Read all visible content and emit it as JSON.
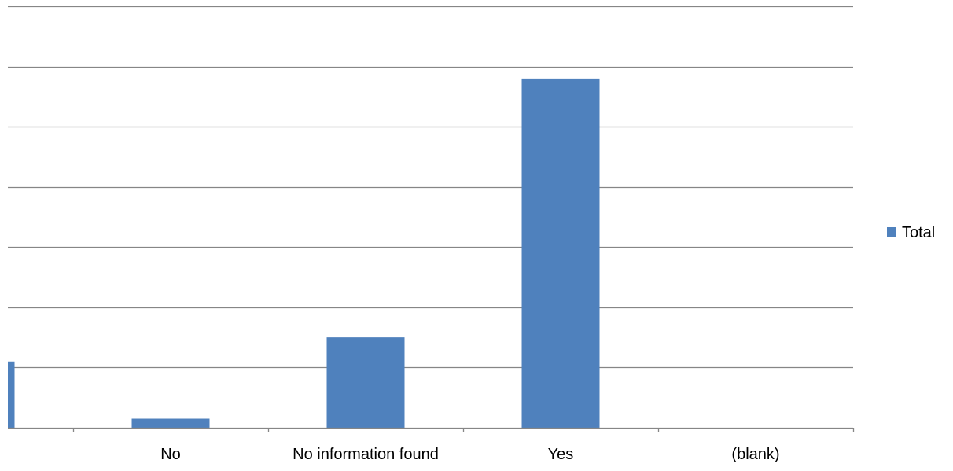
{
  "chart_data": {
    "type": "bar",
    "title": "",
    "xlabel": "",
    "ylabel": "",
    "categories": [
      "",
      "No",
      "No information found",
      "Yes",
      "(blank)"
    ],
    "series": [
      {
        "name": "Total",
        "values": [
          1.1,
          0.15,
          1.5,
          5.8,
          0
        ]
      }
    ],
    "ylim": [
      0,
      7
    ],
    "y_axis_labels_visible": false,
    "grid": true,
    "legend": "right",
    "colors": {
      "bar": "#4F81BD",
      "gridline": "#868686",
      "axis": "#868686"
    }
  }
}
